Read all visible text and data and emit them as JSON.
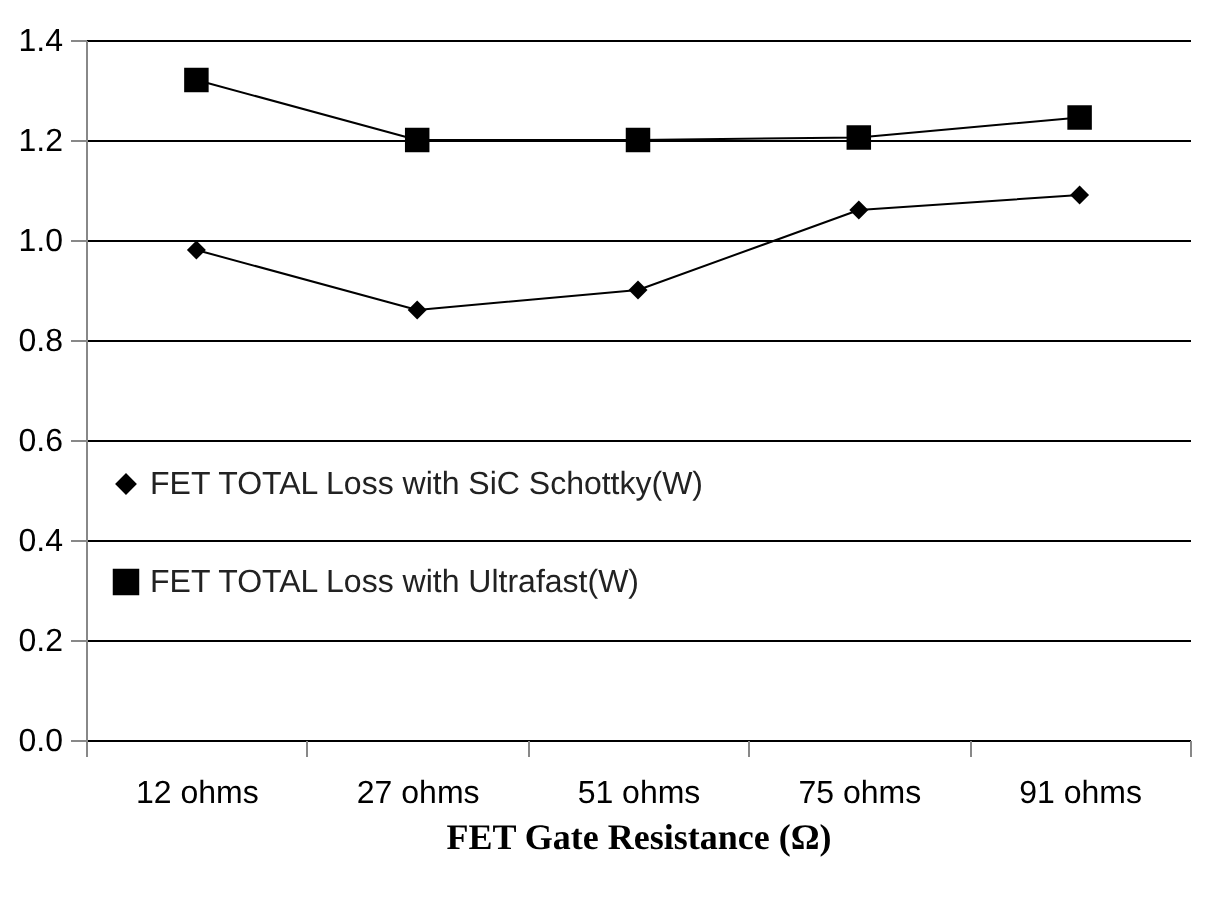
{
  "chart_data": {
    "type": "line",
    "xlabel": "FET Gate Resistance (Ω)",
    "categories": [
      "12 ohms",
      "27 ohms",
      "51 ohms",
      "75 ohms",
      "91 ohms"
    ],
    "series": [
      {
        "name": "FET TOTAL Loss with SiC Schottky(W)",
        "color": "#000000",
        "marker": "diamond",
        "values": [
          0.98,
          0.86,
          0.9,
          1.06,
          1.09
        ]
      },
      {
        "name": "FET TOTAL Loss with Ultrafast(W)",
        "color": "#000000",
        "marker": "square",
        "values": [
          1.32,
          1.2,
          1.2,
          1.205,
          1.245
        ]
      }
    ],
    "ylim": [
      0,
      1.4
    ],
    "yticks": [
      {
        "value": 0,
        "label": "0.0"
      },
      0.2,
      0.4,
      0.6,
      0.8,
      {
        "value": 1,
        "label": "1.0"
      },
      1.2,
      1.4
    ],
    "grid": "y",
    "legend": "left",
    "line_style": "solid"
  }
}
